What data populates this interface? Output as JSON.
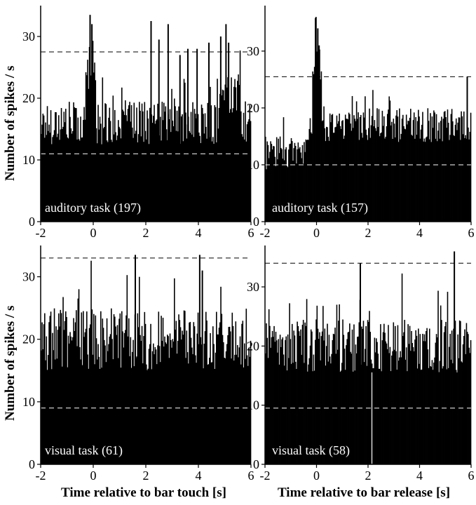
{
  "figure": {
    "ylabel_top": "Number of spikes / s",
    "ylabel_bottom": "Number of spikes / s",
    "xlabel_left": "Time relative to bar touch [s]",
    "xlabel_right": "Time relative to bar release [s]"
  },
  "chart_data": [
    {
      "type": "bar",
      "panel": "A",
      "annotation": "auditory task (197)",
      "xlim": [
        -2,
        6
      ],
      "ylim": [
        0,
        35
      ],
      "xticks": [
        -2,
        0,
        2,
        4,
        6
      ],
      "yticks": [
        0,
        10,
        20,
        30
      ],
      "thresholds": [
        27.5,
        11
      ],
      "baseline": 16,
      "noise": 3.5,
      "bursts": [
        {
          "x0": -0.3,
          "x1": 0.1,
          "level": 24
        },
        {
          "x0": 4.8,
          "x1": 5.6,
          "level": 21
        }
      ],
      "spikes": [
        {
          "x": -0.12,
          "value": 33.5
        },
        {
          "x": -0.05,
          "value": 32
        },
        {
          "x": 2.2,
          "value": 32.5
        },
        {
          "x": 2.5,
          "value": 29.5
        },
        {
          "x": 2.85,
          "value": 32
        },
        {
          "x": 3.3,
          "value": 27
        },
        {
          "x": 3.6,
          "value": 28
        },
        {
          "x": 3.95,
          "value": 28
        },
        {
          "x": 4.4,
          "value": 29
        },
        {
          "x": 4.85,
          "value": 30
        },
        {
          "x": 5.05,
          "value": 32
        },
        {
          "x": 5.15,
          "value": 29
        }
      ]
    },
    {
      "type": "bar",
      "panel": "B",
      "annotation": "auditory task (157)",
      "xlim": [
        -2,
        6
      ],
      "ylim": [
        0,
        38
      ],
      "xticks": [
        -2,
        0,
        2,
        4,
        6
      ],
      "yticks": [
        0,
        10,
        20,
        30
      ],
      "thresholds": [
        25.5,
        10
      ],
      "baseline": 17,
      "noise": 3,
      "bursts": [
        {
          "x0": -2,
          "x1": -0.4,
          "level": 12
        },
        {
          "x0": -0.15,
          "x1": 0.2,
          "level": 28
        }
      ],
      "spikes": [
        {
          "x": -0.02,
          "value": 36
        },
        {
          "x": 0.05,
          "value": 34
        },
        {
          "x": 0.1,
          "value": 31
        },
        {
          "x": 5.85,
          "value": 25.5
        }
      ]
    },
    {
      "type": "bar",
      "panel": "C",
      "annotation": "visual task (61)",
      "xlim": [
        -2,
        6
      ],
      "ylim": [
        0,
        35
      ],
      "xticks": [
        -2,
        0,
        2,
        4,
        6
      ],
      "yticks": [
        0,
        10,
        20,
        30
      ],
      "thresholds": [
        33,
        9
      ],
      "baseline": 20,
      "noise": 5,
      "bursts": [],
      "spikes": [
        {
          "x": 1.6,
          "value": 33.5
        },
        {
          "x": 4.05,
          "value": 33.5
        },
        {
          "x": 4.15,
          "value": 31
        }
      ]
    },
    {
      "type": "bar",
      "panel": "D",
      "annotation": "visual task (58)",
      "xlim": [
        -2,
        6
      ],
      "ylim": [
        0,
        37
      ],
      "xticks": [
        -2,
        0,
        2,
        4,
        6
      ],
      "yticks": [
        0,
        10,
        20,
        30
      ],
      "thresholds": [
        34,
        9.5
      ],
      "baseline": 20,
      "noise": 4.5,
      "bursts": [],
      "spikes": [
        {
          "x": 5.35,
          "value": 36
        },
        {
          "x": 1.7,
          "value": 34
        },
        {
          "x": 2.15,
          "value": 0
        }
      ]
    }
  ]
}
